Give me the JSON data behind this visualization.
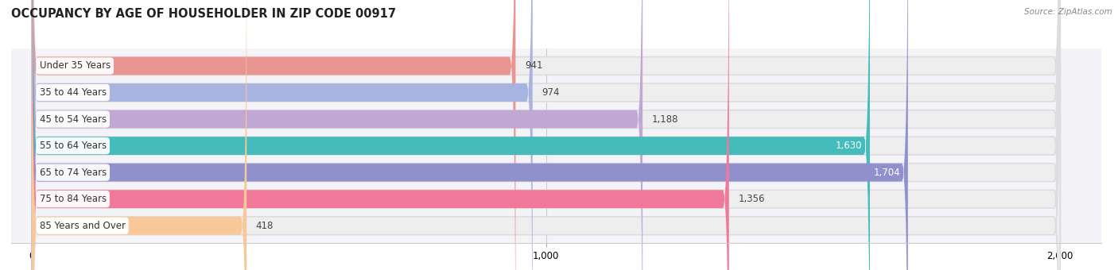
{
  "title": "OCCUPANCY BY AGE OF HOUSEHOLDER IN ZIP CODE 00917",
  "source": "Source: ZipAtlas.com",
  "categories": [
    "Under 35 Years",
    "35 to 44 Years",
    "45 to 54 Years",
    "55 to 64 Years",
    "65 to 74 Years",
    "75 to 84 Years",
    "85 Years and Over"
  ],
  "values": [
    941,
    974,
    1188,
    1630,
    1704,
    1356,
    418
  ],
  "bar_colors": [
    "#E89490",
    "#A8B4E0",
    "#C0A8D4",
    "#44BCBC",
    "#9090CC",
    "#F07898",
    "#F8C898"
  ],
  "bar_bg_color": "#EEEEEE",
  "xlim_data": [
    0,
    2000
  ],
  "xticks": [
    0,
    1000,
    2000
  ],
  "background_color": "#FFFFFF",
  "plot_bg_color": "#F5F5F8",
  "title_fontsize": 10.5,
  "label_fontsize": 8.5,
  "value_fontsize": 8.5,
  "bar_height": 0.68,
  "value_inside_threshold": 1400
}
